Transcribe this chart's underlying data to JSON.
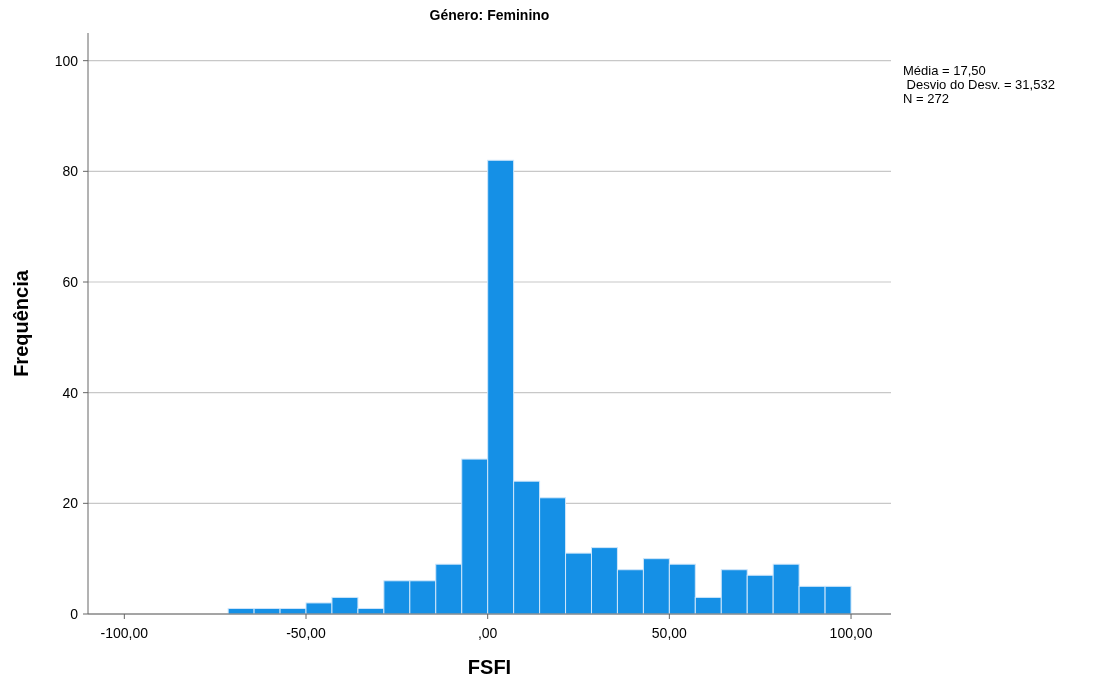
{
  "chart_data": {
    "type": "histogram",
    "title": "Género: Feminino",
    "xlabel": "FSFI",
    "ylabel": "Frequência",
    "bins": [
      -71.43,
      -64.29,
      -57.14,
      -50,
      -42.86,
      -35.71,
      -28.57,
      -21.43,
      -14.29,
      -7.14,
      0,
      7.14,
      14.29,
      21.43,
      28.57,
      35.71,
      42.86,
      50,
      57.14,
      64.29,
      71.43,
      78.57,
      85.71,
      92.86,
      100
    ],
    "values": [
      1,
      1,
      1,
      2,
      3,
      1,
      6,
      6,
      9,
      28,
      82,
      24,
      21,
      11,
      12,
      8,
      10,
      9,
      3,
      8,
      7,
      9,
      5,
      5
    ],
    "color": "#1590e6",
    "xlim": [
      -110,
      111
    ],
    "xticks": [
      {
        "value": -100,
        "label": "-100,00"
      },
      {
        "value": -50,
        "label": "-50,00"
      },
      {
        "value": 0,
        "label": ",00"
      },
      {
        "value": 50,
        "label": "50,00"
      },
      {
        "value": 100,
        "label": "100,00"
      }
    ],
    "ylim": [
      0,
      105
    ],
    "yticks": [
      0,
      20,
      40,
      60,
      80,
      100
    ],
    "grid": "y",
    "annotations": [
      "Média = 17,50",
      " Desvio do Desv. = 31,532",
      "N = 272"
    ]
  }
}
